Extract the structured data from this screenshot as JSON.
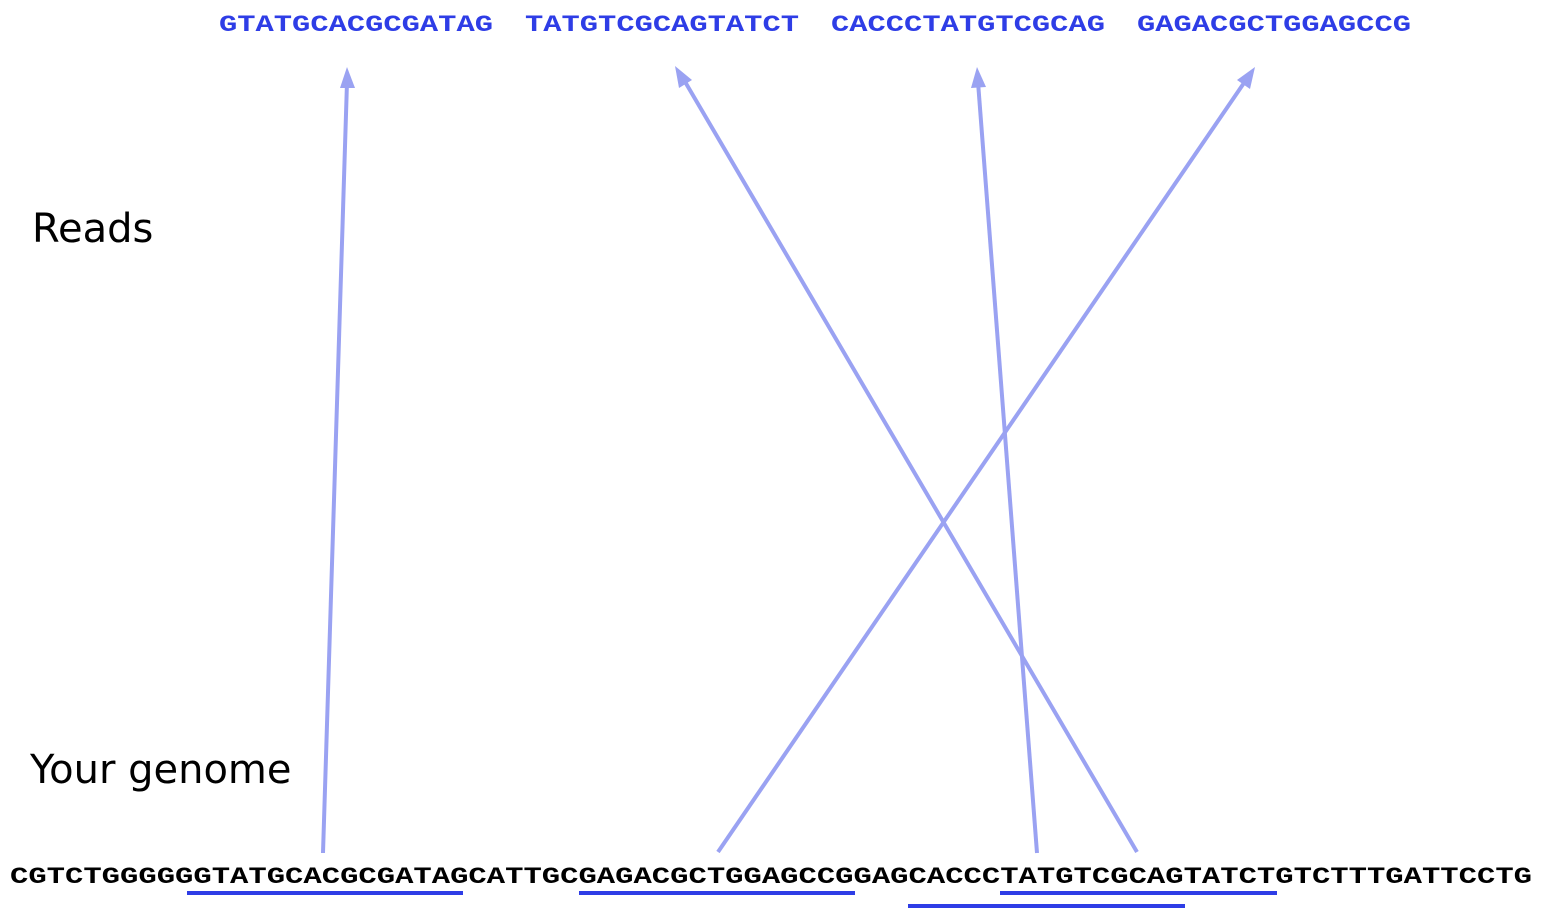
{
  "labels": {
    "reads": "Reads",
    "genome": "Your genome"
  },
  "reads": [
    "GTATGCACGCGATAG",
    "TATGTCGCAGTATCT",
    "CACCCTATGTCGCAG",
    "GAGACGCTGGAGCCG"
  ],
  "genome": "CGTCTGGGGGGTATGCACGCGATAGCATTGCGAGACGCTGGAGCCGGAGCACCCTATGTCGCAGTATCTGTCTTTGATTCCTG",
  "colors": {
    "read_text": "#2e3de6",
    "arrow": "#9aa2f2",
    "underline": "#2e3de6",
    "genome_text": "#000000"
  }
}
